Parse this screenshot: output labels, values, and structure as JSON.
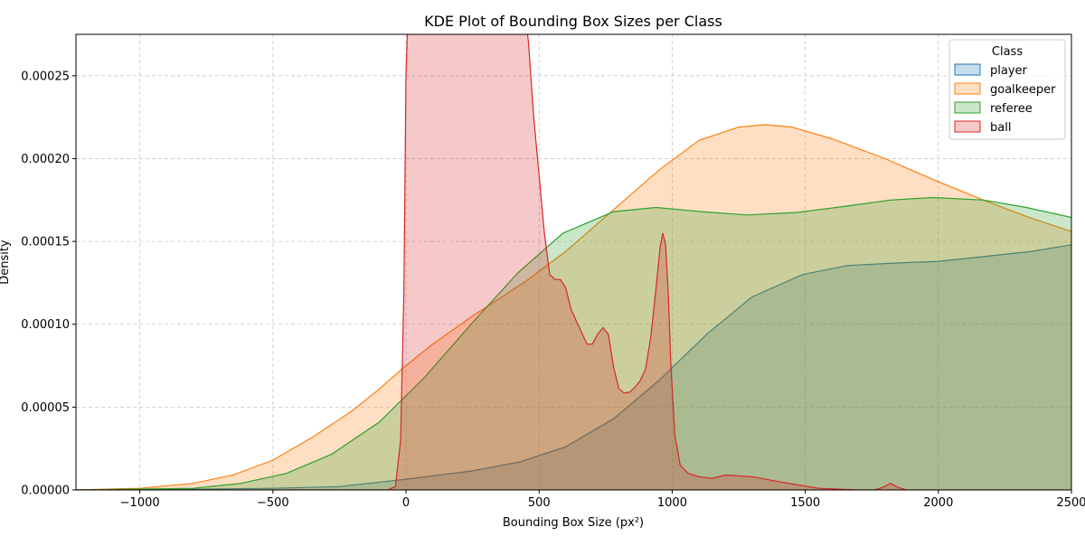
{
  "chart_data": {
    "type": "area",
    "title": "KDE Plot of Bounding Box Sizes per Class",
    "xlabel": "Bounding Box Size (px²)",
    "ylabel": "Density",
    "xlim": [
      -1240,
      2500
    ],
    "ylim": [
      0,
      0.000275
    ],
    "x_ticks": [
      -1000,
      -500,
      0,
      500,
      1000,
      1500,
      2000,
      2500
    ],
    "x_tick_labels": [
      "−1000",
      "−500",
      "0",
      "500",
      "1000",
      "1500",
      "2000",
      "2500"
    ],
    "y_ticks": [
      0,
      5e-05,
      0.0001,
      0.00015,
      0.0002,
      0.00025
    ],
    "y_tick_labels": [
      "0.00000",
      "0.00005",
      "0.00010",
      "0.00015",
      "0.00020",
      "0.00025"
    ],
    "grid": true,
    "legend": {
      "title": "Class",
      "position": "top-right"
    },
    "series": [
      {
        "name": "player",
        "color": "#1f77b4",
        "x": [
          -1240,
          -800,
          -500,
          -250,
          0,
          250,
          430,
          600,
          780,
          950,
          1130,
          1300,
          1490,
          1660,
          1850,
          2000,
          2150,
          2350,
          2500
        ],
        "y": [
          0,
          5e-07,
          1e-06,
          2e-06,
          6.5e-06,
          1.15e-05,
          1.7e-05,
          2.6e-05,
          4.3e-05,
          6.6e-05,
          9.4e-05,
          0.0001165,
          0.00013,
          0.0001355,
          0.000137,
          0.000138,
          0.0001405,
          0.000144,
          0.000148
        ]
      },
      {
        "name": "goalkeeper",
        "color": "#ff7f0e",
        "x": [
          -1240,
          -1000,
          -800,
          -650,
          -500,
          -350,
          -200,
          -100,
          0,
          100,
          250,
          450,
          600,
          800,
          950,
          1100,
          1250,
          1350,
          1450,
          1600,
          1800,
          2000,
          2200,
          2350,
          2500
        ],
        "y": [
          0,
          1e-06,
          4e-06,
          9e-06,
          1.8e-05,
          3.2e-05,
          4.8e-05,
          6.1e-05,
          7.5e-05,
          8.8e-05,
          0.000105,
          0.000126,
          0.000144,
          0.000172,
          0.000193,
          0.000211,
          0.000219,
          0.0002205,
          0.000219,
          0.000212,
          0.0002,
          0.000186,
          0.000173,
          0.000164,
          0.000156
        ]
      },
      {
        "name": "referee",
        "color": "#2ca02c",
        "x": [
          -1240,
          -800,
          -620,
          -450,
          -280,
          -100,
          70,
          250,
          420,
          590,
          780,
          940,
          1110,
          1280,
          1470,
          1640,
          1820,
          1980,
          2170,
          2330,
          2500
        ],
        "y": [
          0,
          1e-06,
          4e-06,
          1e-05,
          2.15e-05,
          4.1e-05,
          6.8e-05,
          0.000101,
          0.000131,
          0.000155,
          0.000168,
          0.0001705,
          0.000168,
          0.000166,
          0.0001675,
          0.000171,
          0.000175,
          0.0001765,
          0.000175,
          0.0001705,
          0.0001645
        ]
      },
      {
        "name": "ball",
        "color": "#d62728",
        "x": [
          -1240,
          -70,
          -40,
          -20,
          -8,
          0,
          10,
          20,
          440,
          460,
          480,
          500,
          520,
          540,
          560,
          580,
          600,
          620,
          640,
          660,
          680,
          700,
          720,
          740,
          760,
          780,
          800,
          820,
          840,
          860,
          880,
          900,
          920,
          940,
          955,
          965,
          975,
          985,
          995,
          1010,
          1030,
          1060,
          1100,
          1150,
          1200,
          1300,
          1400,
          1550,
          1700,
          1760,
          1790,
          1820,
          1850,
          1880,
          2500
        ],
        "y": [
          0,
          0,
          2e-06,
          3e-05,
          0.00012,
          0.00025,
          0.0003,
          0.0003,
          0.0003,
          0.00027,
          0.000225,
          0.00019,
          0.000155,
          0.00013,
          0.000127,
          0.000127,
          0.000122,
          0.000109,
          0.000102,
          9.5e-05,
          8.8e-05,
          8.8e-05,
          9.4e-05,
          9.8e-05,
          9.4e-05,
          7.4e-05,
          6.1e-05,
          5.85e-05,
          5.9e-05,
          6.2e-05,
          6.6e-05,
          7.3e-05,
          9.3e-05,
          0.000123,
          0.000147,
          0.000155,
          0.000148,
          0.00012,
          7.5e-05,
          3.3e-05,
          1.5e-05,
          1e-05,
          8e-06,
          7e-06,
          9e-06,
          8e-06,
          5e-06,
          1e-06,
          0,
          0,
          1.5e-06,
          4e-06,
          1.5e-06,
          0,
          0
        ]
      }
    ]
  }
}
